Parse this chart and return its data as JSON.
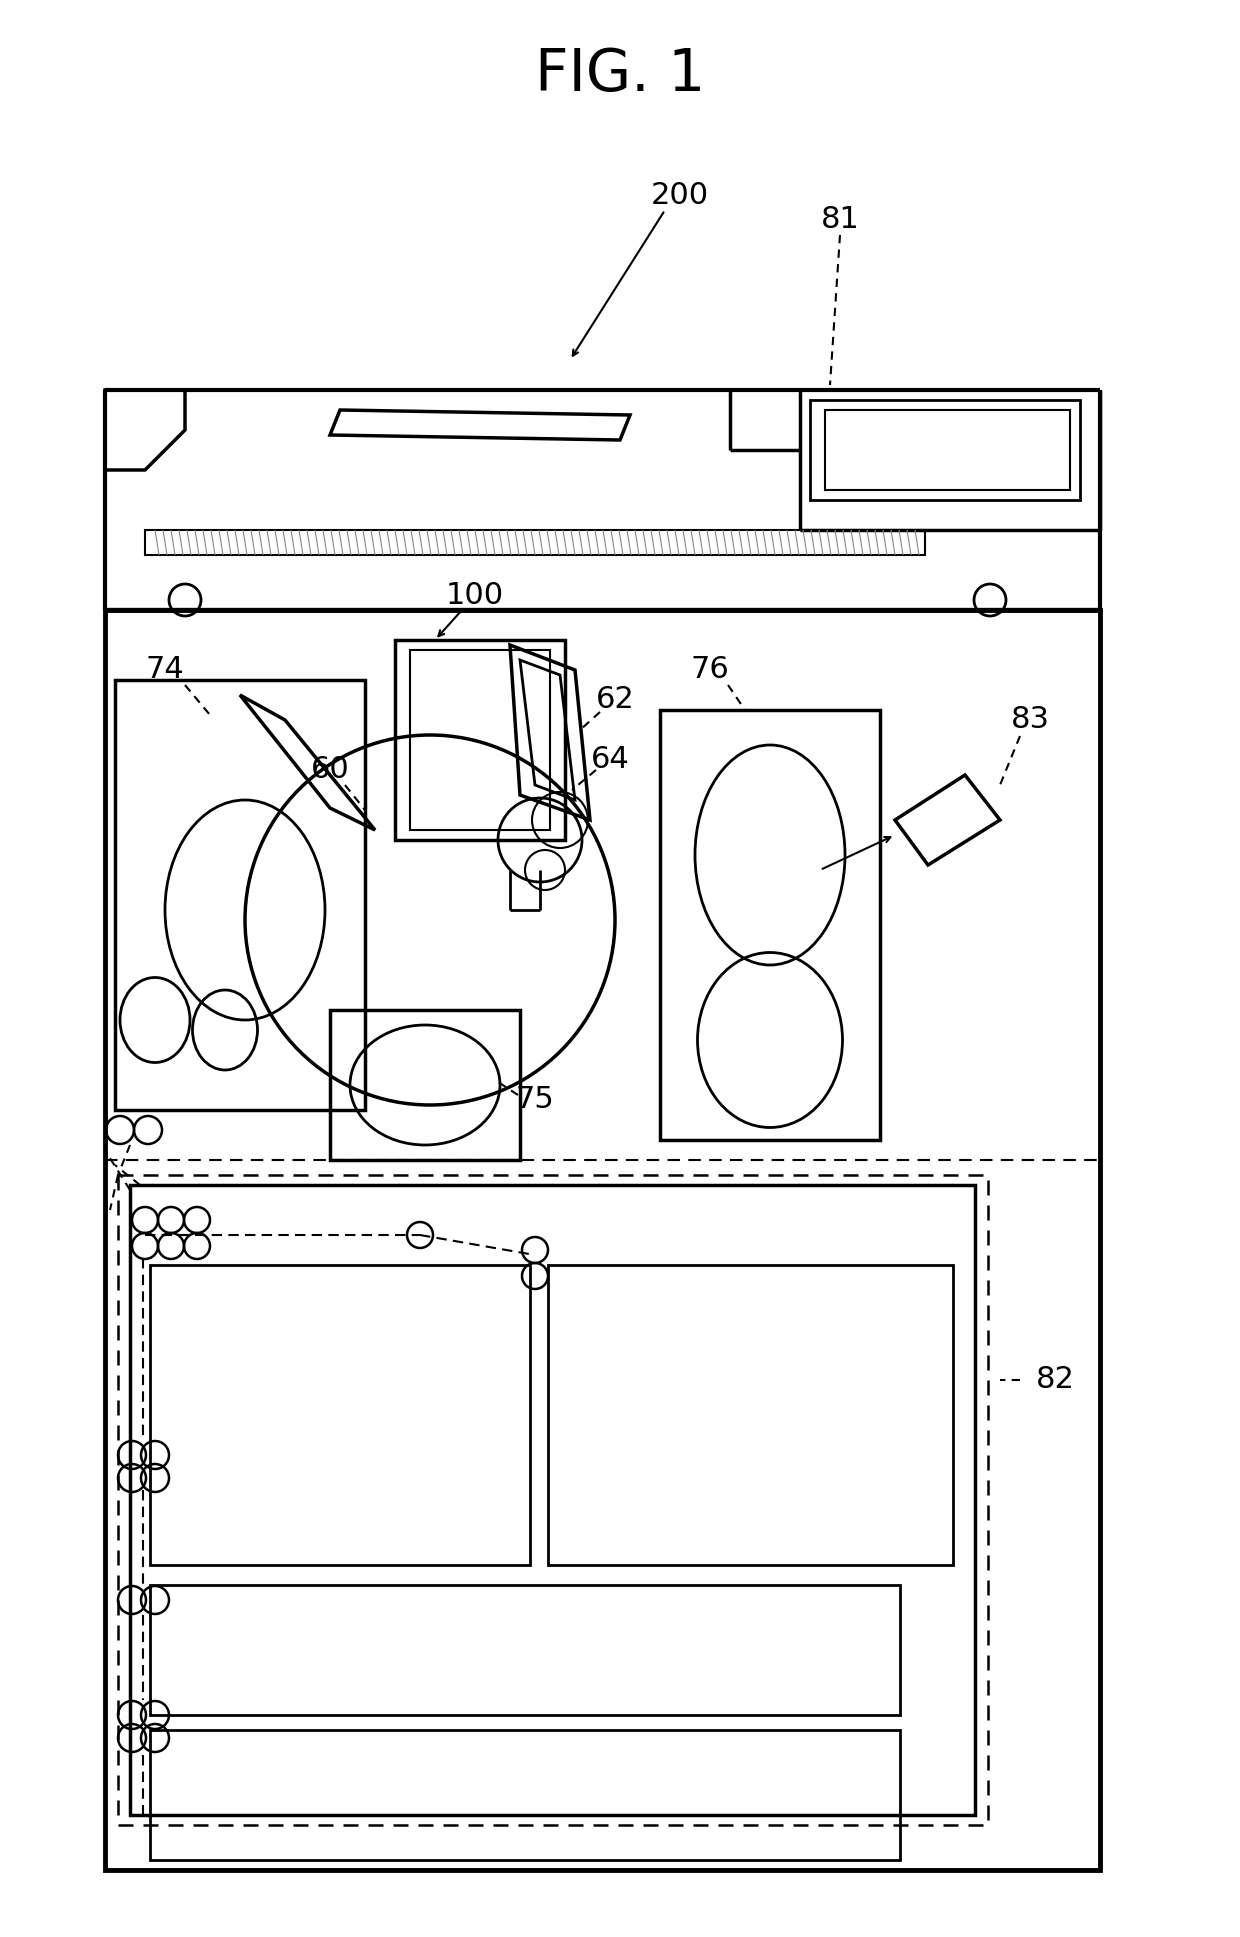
{
  "title": "FIG. 1",
  "title_fontsize": 32,
  "bg_color": "#ffffff",
  "line_color": "#000000",
  "figsize": [
    12.4,
    19.37
  ],
  "dpi": 100
}
